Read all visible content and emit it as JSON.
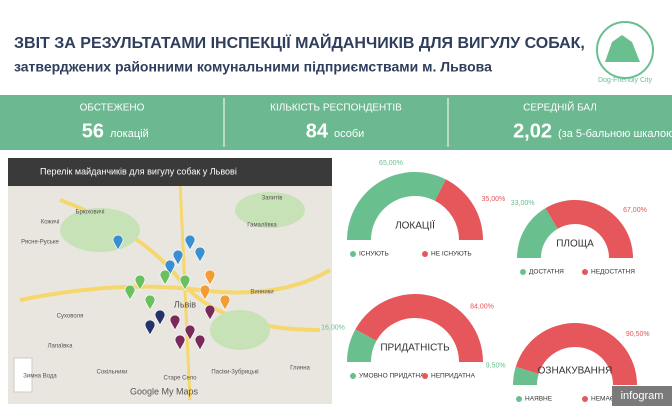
{
  "header": {
    "title": "ЗВІТ ЗА РЕЗУЛЬТАТАМИ ІНСПЕКЦІЇ МАЙДАНЧИКІВ ДЛЯ ВИГУЛУ СОБАК,",
    "subtitle": "затверджених районними комунальними підприємствами м. Львова",
    "logo": "Dog-Friendly City"
  },
  "stats": [
    {
      "label": "ОБСТЕЖЕНО",
      "value": 56,
      "unit": "локацій"
    },
    {
      "label": "КІЛЬКІСТЬ РЕСПОНДЕНТІВ",
      "value": 84,
      "unit": "особи"
    },
    {
      "label": "СЕРЕДНІЙ БАЛ",
      "value": "2,02",
      "unit": "(за 5-бальною шкалою)"
    }
  ],
  "map": {
    "title": "Перелік майданчиків для вигулу собак у Львові",
    "attribution": "Google My Maps",
    "places": [
      "Брюховичі",
      "Рясне-Руське",
      "Кожичі",
      "Львів",
      "Винники",
      "Гамаліївка",
      "Запитів",
      "Сокільники",
      "Суховоля",
      "Лапаївка",
      "Зимна Вода",
      "Пасіки-Зубрицькі",
      "Старе Село",
      "Глинна"
    ]
  },
  "chart_data": [
    {
      "type": "pie",
      "title": "ЛОКАЦІЇ",
      "categories": [
        "ІСНУЮТЬ",
        "НЕ ІСНУЮТЬ"
      ],
      "values": [
        65,
        35
      ],
      "value_labels": [
        "65,00%",
        "35,00%"
      ],
      "colors": [
        "#6abf8f",
        "#e5575a"
      ]
    },
    {
      "type": "pie",
      "title": "ПЛОЩА",
      "categories": [
        "ДОСТАТНЯ",
        "НЕДОСТАТНЯ"
      ],
      "values": [
        33,
        67
      ],
      "value_labels": [
        "33,00%",
        "67,00%"
      ],
      "colors": [
        "#6abf8f",
        "#e5575a"
      ]
    },
    {
      "type": "pie",
      "title": "ПРИДАТНІСТЬ",
      "categories": [
        "УМОВНО ПРИДАТНА",
        "НЕПРИДАТНА"
      ],
      "values": [
        16,
        84
      ],
      "value_labels": [
        "16,00%",
        "84,00%"
      ],
      "colors": [
        "#6abf8f",
        "#e5575a"
      ]
    },
    {
      "type": "pie",
      "title": "ОЗНАКУВАННЯ",
      "categories": [
        "НАЯВНЕ",
        "НЕМАЄ"
      ],
      "values": [
        9.5,
        90.5
      ],
      "value_labels": [
        "9,50%",
        "90,50%"
      ],
      "colors": [
        "#6abf8f",
        "#e5575a"
      ]
    }
  ],
  "badge": "infogram"
}
